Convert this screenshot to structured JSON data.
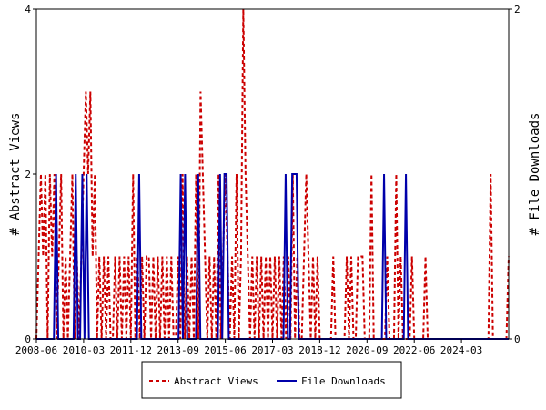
{
  "chart_data": {
    "type": "line",
    "title": "",
    "ylabel_left": "# Abstract Views",
    "ylabel_right": "# File Downloads",
    "ylim_left": [
      0,
      4
    ],
    "ylim_right": [
      0,
      2
    ],
    "yticks_left": [
      "0",
      "2",
      "4"
    ],
    "yticks_right": [
      "0",
      "2"
    ],
    "xlim": [
      "2008-06",
      "2025-12"
    ],
    "xtick_labels": [
      "2008-06",
      "2010-03",
      "2011-12",
      "2013-09",
      "2015-06",
      "2017-03",
      "2018-12",
      "2020-09",
      "2022-06",
      "2024-03"
    ],
    "grid": false,
    "legend_position": "bottom-center",
    "series": [
      {
        "name": "Abstract Views",
        "axis": "left",
        "color": "#cc0000",
        "style": "dashed",
        "values": [
          0,
          1,
          2,
          1,
          2,
          0,
          2,
          1,
          2,
          0,
          1,
          2,
          0,
          1,
          0,
          1,
          2,
          0,
          1,
          0,
          1,
          2,
          3,
          2,
          3,
          1,
          2,
          0,
          1,
          0,
          1,
          0,
          1,
          0,
          0,
          1,
          0,
          1,
          0,
          1,
          0,
          1,
          0,
          2,
          0,
          1,
          0,
          1,
          0,
          1,
          1,
          0,
          1,
          0,
          1,
          0,
          1,
          0,
          1,
          0,
          1,
          0,
          0,
          1,
          0,
          2,
          0,
          1,
          0,
          1,
          0,
          2,
          0,
          3,
          2,
          1,
          0,
          1,
          0,
          1,
          0,
          2,
          0,
          1,
          2,
          1,
          0,
          1,
          0,
          2,
          0,
          1,
          4,
          2,
          1,
          0,
          1,
          0,
          1,
          0,
          1,
          0,
          1,
          0,
          1,
          0,
          1,
          0,
          1,
          0,
          1,
          0,
          1,
          0,
          2,
          0,
          1,
          0,
          0,
          1,
          2,
          1,
          0,
          1,
          0,
          1,
          0,
          0,
          0,
          0,
          0,
          0,
          1,
          0,
          0,
          0,
          0,
          0,
          1,
          0,
          1,
          0,
          0,
          1,
          1,
          1,
          0,
          0,
          0,
          2,
          0,
          0,
          0,
          0,
          0,
          0,
          1,
          0,
          0,
          0,
          2,
          0,
          1,
          0,
          0,
          0,
          0,
          1,
          0,
          0,
          0,
          0,
          0,
          1,
          0,
          0,
          0,
          0,
          0,
          0,
          0,
          0,
          0,
          0,
          0,
          0,
          0,
          0,
          0,
          0,
          0,
          0,
          0,
          0,
          0,
          0,
          0,
          0,
          0,
          0,
          0,
          0,
          2,
          0,
          0,
          0,
          0,
          0,
          0,
          0,
          1
        ]
      },
      {
        "name": "File Downloads",
        "axis": "right",
        "color": "#0000aa",
        "style": "solid",
        "values": [
          0,
          0,
          0,
          0,
          0,
          0,
          0,
          0,
          0,
          1,
          0,
          0,
          0,
          0,
          0,
          0,
          0,
          0,
          1,
          0,
          0,
          1,
          0,
          1,
          0,
          0,
          0,
          0,
          0,
          0,
          0,
          0,
          0,
          0,
          0,
          0,
          0,
          0,
          0,
          0,
          0,
          0,
          0,
          0,
          0,
          0,
          0,
          1,
          0,
          0,
          0,
          0,
          0,
          0,
          0,
          0,
          0,
          0,
          0,
          0,
          0,
          0,
          0,
          0,
          0,
          0,
          1,
          0,
          1,
          0,
          0,
          0,
          0,
          0,
          1,
          0,
          0,
          0,
          0,
          0,
          0,
          0,
          0,
          0,
          1,
          0,
          1,
          1,
          0,
          0,
          0,
          0,
          0,
          0,
          0,
          0,
          0,
          0,
          0,
          0,
          0,
          0,
          0,
          0,
          0,
          0,
          0,
          0,
          0,
          0,
          0,
          0,
          0,
          0,
          1,
          0,
          0,
          1,
          1,
          1,
          0,
          0,
          0,
          0,
          0,
          0,
          0,
          0,
          0,
          0,
          0,
          0,
          0,
          0,
          0,
          0,
          0,
          0,
          0,
          0,
          0,
          0,
          0,
          0,
          0,
          0,
          0,
          0,
          0,
          0,
          0,
          0,
          0,
          0,
          0,
          0,
          0,
          0,
          0,
          1,
          0,
          0,
          0,
          0,
          0,
          0,
          0,
          0,
          0,
          1,
          0,
          0,
          0,
          0,
          0,
          0,
          0,
          0,
          0,
          0,
          0,
          0,
          0,
          0,
          0,
          0,
          0,
          0,
          0,
          0,
          0,
          0,
          0,
          0,
          0,
          0,
          0,
          0,
          0,
          0,
          0,
          0,
          0,
          0,
          0,
          0,
          0,
          0,
          0,
          0,
          0,
          0,
          0,
          0,
          0,
          0,
          0
        ]
      }
    ]
  }
}
